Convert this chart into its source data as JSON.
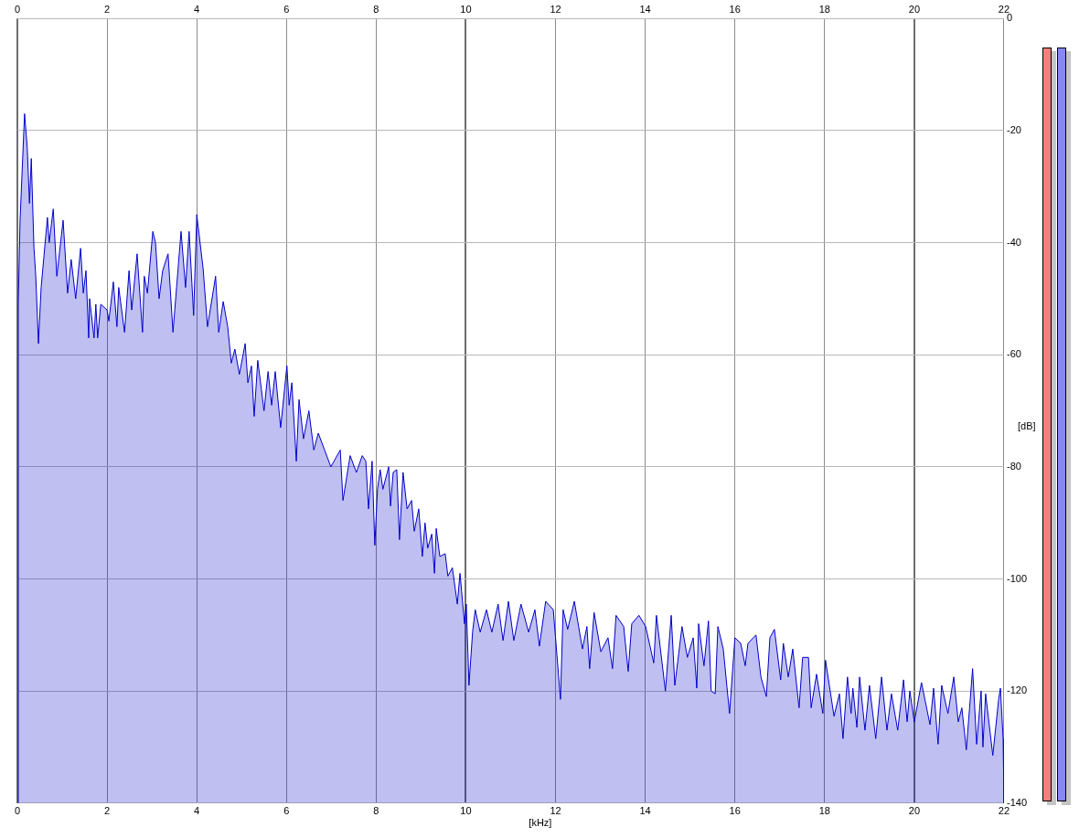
{
  "chart_data": {
    "type": "area",
    "xlabel": "[kHz]",
    "ylabel": "[dB]",
    "x": [
      0,
      0.02,
      0.06,
      0.16,
      0.22,
      0.27,
      0.31,
      0.37,
      0.41,
      0.47,
      0.53,
      0.67,
      0.71,
      0.8,
      0.88,
      1.02,
      1.12,
      1.2,
      1.3,
      1.41,
      1.47,
      1.53,
      1.59,
      1.61,
      1.71,
      1.75,
      1.79,
      1.86,
      2,
      2.04,
      2.14,
      2.22,
      2.26,
      2.39,
      2.49,
      2.55,
      2.67,
      2.79,
      2.83,
      2.9,
      3.02,
      3.08,
      3.16,
      3.24,
      3.36,
      3.47,
      3.55,
      3.65,
      3.75,
      3.83,
      3.93,
      4,
      4.14,
      4.24,
      4.42,
      4.49,
      4.59,
      4.69,
      4.77,
      4.85,
      4.95,
      5.08,
      5.14,
      5.22,
      5.28,
      5.36,
      5.5,
      5.59,
      5.67,
      5.75,
      5.87,
      6.01,
      6.06,
      6.12,
      6.22,
      6.28,
      6.38,
      6.5,
      6.61,
      6.71,
      6.85,
      6.99,
      7.2,
      7.26,
      7.42,
      7.56,
      7.69,
      7.77,
      7.83,
      7.91,
      7.97,
      8.03,
      8.09,
      8.15,
      8.28,
      8.32,
      8.38,
      8.46,
      8.52,
      8.6,
      8.69,
      8.79,
      8.85,
      8.95,
      9.03,
      9.09,
      9.15,
      9.24,
      9.3,
      9.34,
      9.42,
      9.54,
      9.6,
      9.7,
      9.81,
      9.87,
      9.97,
      10.01,
      10.07,
      10.15,
      10.21,
      10.32,
      10.46,
      10.58,
      10.72,
      10.83,
      10.95,
      11.07,
      11.23,
      11.4,
      11.54,
      11.64,
      11.78,
      11.95,
      12.11,
      12.17,
      12.27,
      12.42,
      12.6,
      12.7,
      12.76,
      12.86,
      13.01,
      13.17,
      13.27,
      13.35,
      13.52,
      13.62,
      13.7,
      13.86,
      14.01,
      14.19,
      14.25,
      14.45,
      14.58,
      14.66,
      14.82,
      14.94,
      15.07,
      15.15,
      15.19,
      15.31,
      15.41,
      15.47,
      15.56,
      15.62,
      15.74,
      15.88,
      16,
      16.13,
      16.23,
      16.29,
      16.47,
      16.58,
      16.7,
      16.78,
      16.88,
      17.02,
      17.08,
      17.19,
      17.29,
      17.43,
      17.51,
      17.64,
      17.7,
      17.82,
      17.96,
      18.02,
      18.21,
      18.33,
      18.41,
      18.51,
      18.59,
      18.63,
      18.72,
      18.78,
      18.9,
      19,
      19.14,
      19.27,
      19.39,
      19.49,
      19.63,
      19.76,
      19.84,
      19.9,
      20,
      20.16,
      20.35,
      20.43,
      20.53,
      20.61,
      20.75,
      20.88,
      20.98,
      21.06,
      21.16,
      21.3,
      21.39,
      21.49,
      21.53,
      21.59,
      21.75,
      21.88,
      21.92,
      21.98,
      22
    ],
    "values": [
      -140,
      -51,
      -36,
      -17,
      -23,
      -33,
      -25,
      -41,
      -46,
      -58,
      -48,
      -35.5,
      -40,
      -34,
      -46,
      -36,
      -49,
      -43,
      -50,
      -41,
      -49,
      -45,
      -57,
      -50,
      -57,
      -51,
      -57,
      -51,
      -52,
      -54,
      -47,
      -55,
      -48,
      -56,
      -45,
      -52,
      -42,
      -56,
      -46,
      -49,
      -38,
      -40,
      -50,
      -45,
      -42,
      -56,
      -48,
      -38,
      -48,
      -38,
      -53,
      -35,
      -44.5,
      -55,
      -46,
      -56,
      -50.5,
      -55,
      -61.5,
      -59,
      -63.5,
      -58,
      -65,
      -62,
      -71,
      -61,
      -70,
      -63,
      -69,
      -63,
      -73,
      -62,
      -69,
      -65,
      -79,
      -68,
      -75,
      -70,
      -77,
      -74,
      -77,
      -80,
      -77,
      -86,
      -78,
      -81,
      -78,
      -79,
      -87.5,
      -79,
      -94,
      -84,
      -80.5,
      -84,
      -80,
      -87,
      -81,
      -80.5,
      -93,
      -81,
      -87.5,
      -86,
      -91.5,
      -87.5,
      -96,
      -90,
      -94.5,
      -92,
      -99,
      -91,
      -96,
      -95.5,
      -99.5,
      -98,
      -104.5,
      -99,
      -108,
      -104.5,
      -119,
      -109.5,
      -105.5,
      -109.5,
      -105.5,
      -109.5,
      -104.5,
      -111,
      -104,
      -111,
      -104.5,
      -109.5,
      -105.5,
      -112,
      -104,
      -105.5,
      -121.5,
      -105.5,
      -109,
      -104,
      -112.5,
      -108.5,
      -116,
      -106,
      -113,
      -110.5,
      -116,
      -106.5,
      -108.5,
      -116.5,
      -108,
      -106.5,
      -108.5,
      -115,
      -106.5,
      -120,
      -106.5,
      -119,
      -108.5,
      -114,
      -110.5,
      -119.5,
      -108,
      -115.5,
      -107.5,
      -120,
      -120.5,
      -108.5,
      -112.5,
      -124,
      -110.5,
      -111.5,
      -115.5,
      -111.5,
      -110,
      -117.5,
      -121,
      -110.5,
      -109,
      -118,
      -111.5,
      -117.5,
      -112.5,
      -123,
      -114,
      -114,
      -123,
      -117,
      -124,
      -114.5,
      -124.5,
      -120.5,
      -128.5,
      -117.5,
      -124,
      -119.5,
      -126.5,
      -117.5,
      -127,
      -119,
      -128.5,
      -117.5,
      -127,
      -120.5,
      -127,
      -118,
      -125.5,
      -120,
      -125.5,
      -118.5,
      -126,
      -119.5,
      -129.5,
      -119,
      -124,
      -117.5,
      -125.5,
      -123,
      -130.5,
      -116,
      -129.5,
      -120,
      -130,
      -120.5,
      -131.5,
      -121.5,
      -119.5,
      -128.5,
      -140
    ],
    "color": "#0000cc",
    "xlim": [
      0,
      22
    ],
    "xticks": [
      0,
      2,
      4,
      6,
      8,
      10,
      12,
      14,
      16,
      18,
      20,
      22
    ],
    "x2lim": [
      0,
      22
    ],
    "x2ticks": [
      0,
      2,
      4,
      6,
      8,
      10,
      12,
      14,
      16,
      18,
      20,
      22
    ],
    "ylim": [
      -140,
      0
    ],
    "yticks": [
      -140,
      -120,
      -100,
      -80,
      -60,
      -40,
      -20,
      0
    ],
    "grid": true
  }
}
